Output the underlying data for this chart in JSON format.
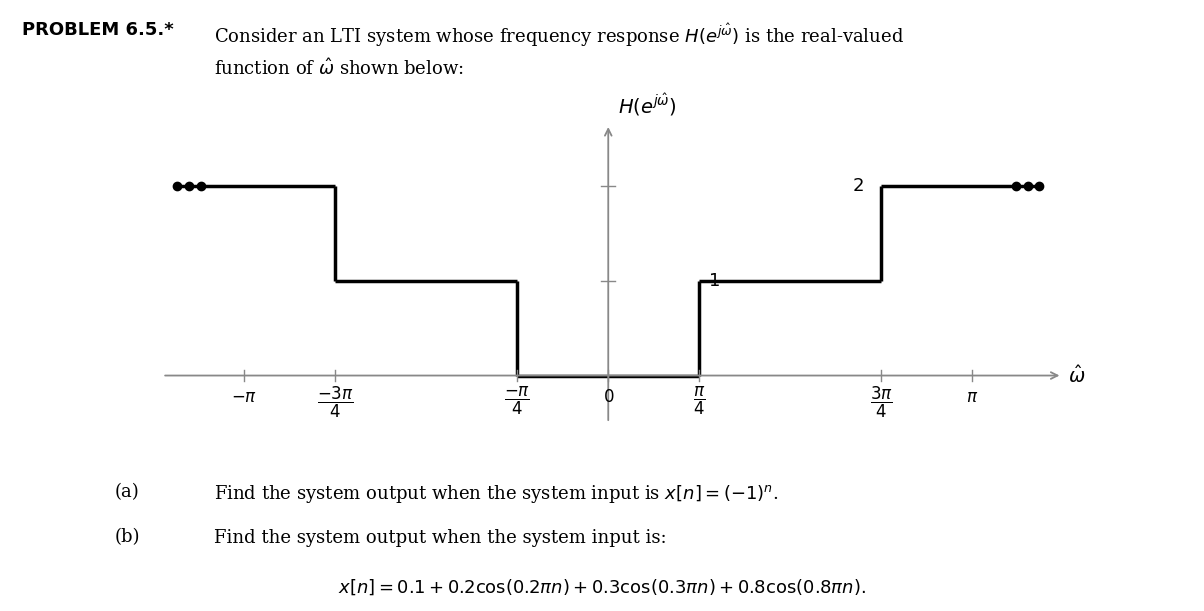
{
  "pi": 3.14159265358979,
  "xlim": [
    -3.9,
    4.0
  ],
  "ylim": [
    -0.55,
    2.8
  ],
  "background_color": "#ffffff",
  "line_color": "#000000",
  "axis_color": "#888888",
  "lw": 2.5,
  "dot_size": 6,
  "tick_fs": 12,
  "label_fs": 14,
  "header_fs": 13,
  "text_fs": 13
}
